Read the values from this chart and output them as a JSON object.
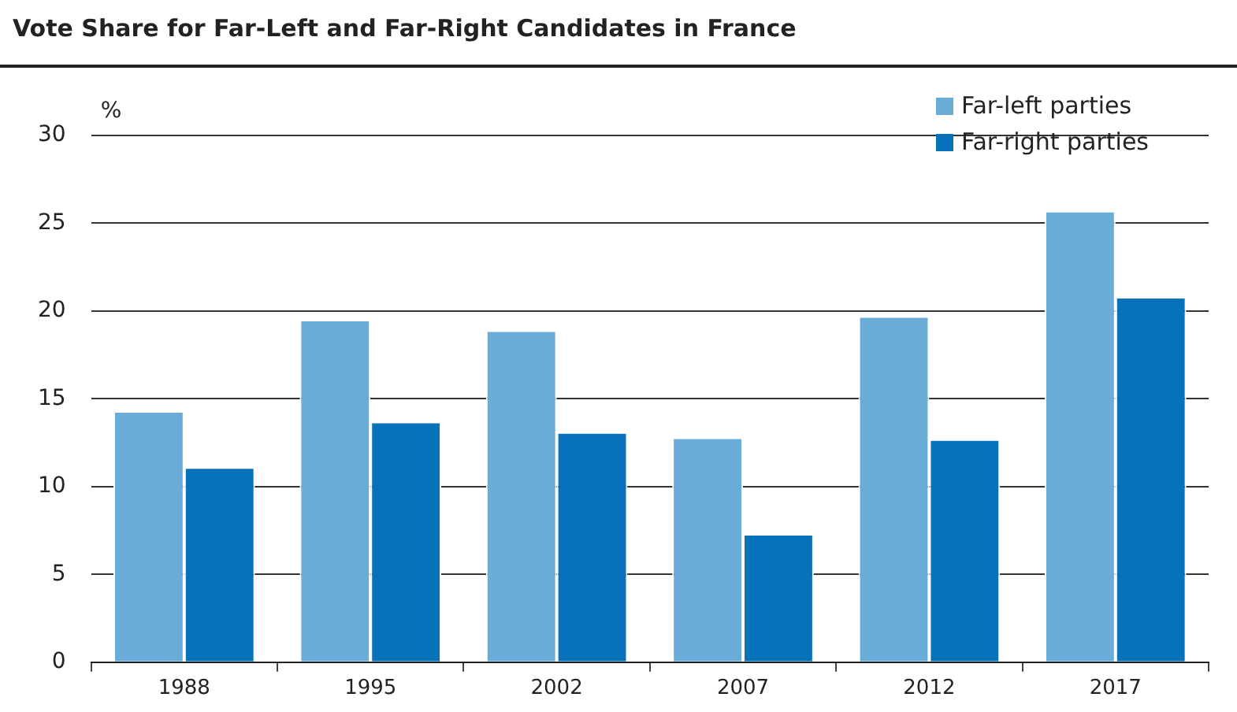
{
  "chart_data": {
    "type": "bar",
    "title": "Vote Share for Far-Left and Far-Right Candidates in France",
    "ylabel": "%",
    "categories": [
      "1988",
      "1995",
      "2002",
      "2007",
      "2012",
      "2017"
    ],
    "series": [
      {
        "name": "Far-left parties",
        "color": "#6aacd8",
        "values": [
          14.3,
          19.5,
          18.9,
          12.8,
          19.7,
          25.7
        ]
      },
      {
        "name": "Far-right parties",
        "color": "#0772ba",
        "values": [
          11.1,
          13.7,
          13.1,
          7.3,
          12.7,
          20.8
        ]
      }
    ],
    "ylim": [
      0,
      30
    ],
    "yticks": [
      0,
      5,
      10,
      15,
      20,
      25,
      30
    ],
    "grid": "y",
    "legend": "top right"
  }
}
